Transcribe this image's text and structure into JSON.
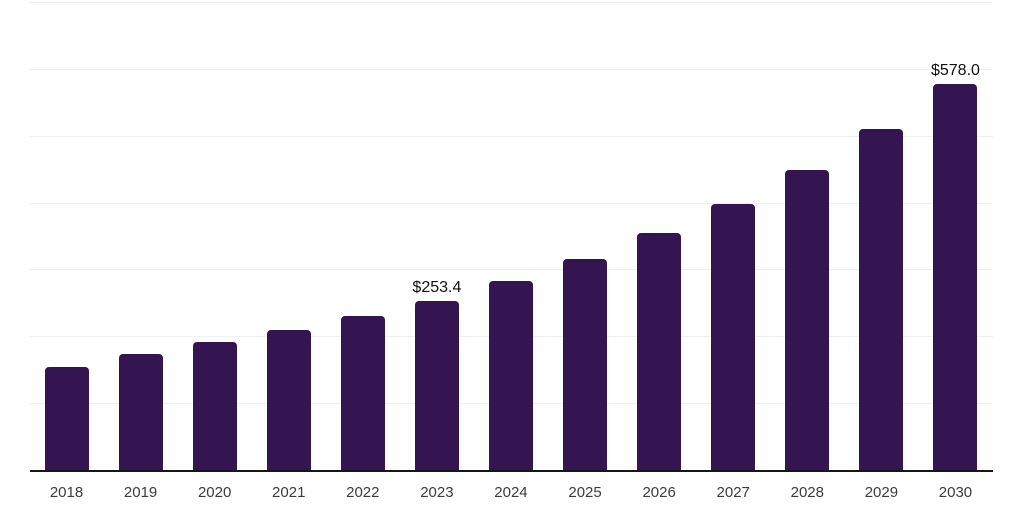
{
  "chart_data": {
    "type": "bar",
    "title": "",
    "xlabel": "",
    "ylabel": "",
    "categories": [
      "2018",
      "2019",
      "2020",
      "2021",
      "2022",
      "2023",
      "2024",
      "2025",
      "2026",
      "2027",
      "2028",
      "2029",
      "2030"
    ],
    "values": [
      154,
      173,
      191,
      209,
      230,
      253.4,
      283,
      315,
      354,
      398,
      449,
      510,
      578
    ],
    "data_labels": [
      null,
      null,
      null,
      null,
      null,
      "$253.4",
      null,
      null,
      null,
      null,
      null,
      null,
      "$578.0"
    ],
    "ylim": [
      0,
      700
    ],
    "gridline_step": 100,
    "grid": true,
    "legend": "none",
    "y_tick_labels_visible": false,
    "colors": {
      "bar": "#341551",
      "gridline": "#f0f0f0",
      "axis_line": "#161616",
      "tick_label": "#3c3c3c",
      "data_label": "#111111",
      "background": "#ffffff"
    }
  }
}
